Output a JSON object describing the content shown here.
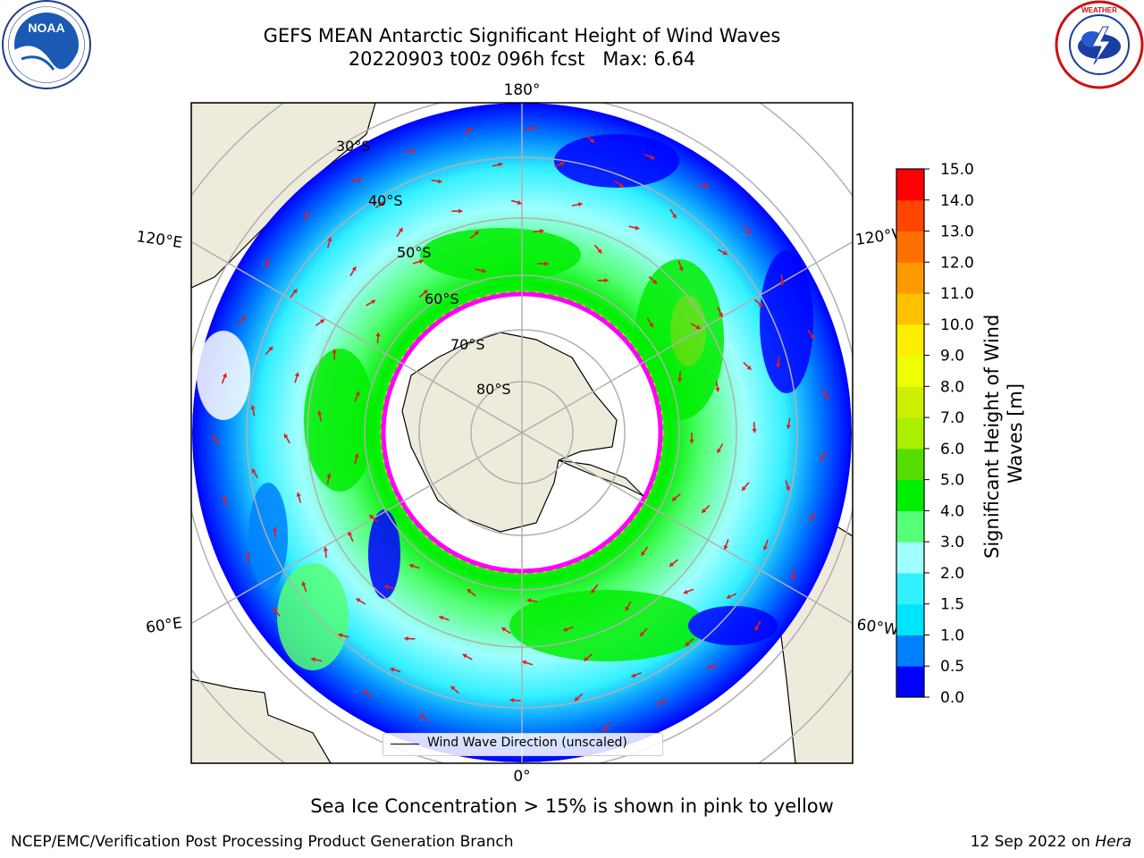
{
  "title": {
    "line1": "GEFS MEAN Antarctic Significant Height of Wind Waves",
    "line2": "20220903 t00z 096h fcst   Max: 6.64"
  },
  "logos": {
    "left": {
      "name": "NOAA",
      "ring_text": "NATIONAL OCEANIC AND ATMOSPHERIC ADMINISTRATION",
      "bottom_text": "U.S. DEPARTMENT OF COMMERCE"
    },
    "right": {
      "name": "NATIONAL WEATHER SERVICE"
    }
  },
  "map": {
    "projection": "south-polar-stereographic",
    "longitude_labels": {
      "top": "180°",
      "bottom": "0°",
      "upper_left": "120°E",
      "lower_left": "60°E",
      "upper_right": "120°W",
      "lower_right": "60°W"
    },
    "latitude_labels": [
      "30°S",
      "40°S",
      "50°S",
      "60°S",
      "70°S",
      "80°S"
    ],
    "legend": "Wind Wave Direction (unscaled)",
    "colors": {
      "land": "#efebdc",
      "coast": "#000000",
      "grid": "#b0b0b0",
      "arrows": "#e41a1c",
      "sea_ice": "#ff00ff"
    }
  },
  "colorbar": {
    "label": "Significant Height of Wind Waves [m]",
    "ticks": [
      "0.0",
      "0.5",
      "1.0",
      "1.5",
      "2.0",
      "3.0",
      "4.0",
      "5.0",
      "6.0",
      "7.0",
      "8.0",
      "9.0",
      "10.0",
      "11.0",
      "12.0",
      "13.0",
      "14.0",
      "15.0"
    ],
    "colors": [
      "#0000ff",
      "#0080ff",
      "#00e5ff",
      "#33f0ff",
      "#a0ffff",
      "#55ff77",
      "#00ee00",
      "#55dd00",
      "#aaee00",
      "#ccf000",
      "#eeff00",
      "#ffee00",
      "#ffc000",
      "#ff9900",
      "#ff7000",
      "#ff4500",
      "#ff0000"
    ]
  },
  "footer": {
    "note": "Sea Ice Concentration > 15% is shown in pink to yellow",
    "left": "NCEP/EMC/Verification Post Processing Product Generation Branch",
    "right_prefix": "12 Sep 2022 on ",
    "right_host": "Hera"
  }
}
